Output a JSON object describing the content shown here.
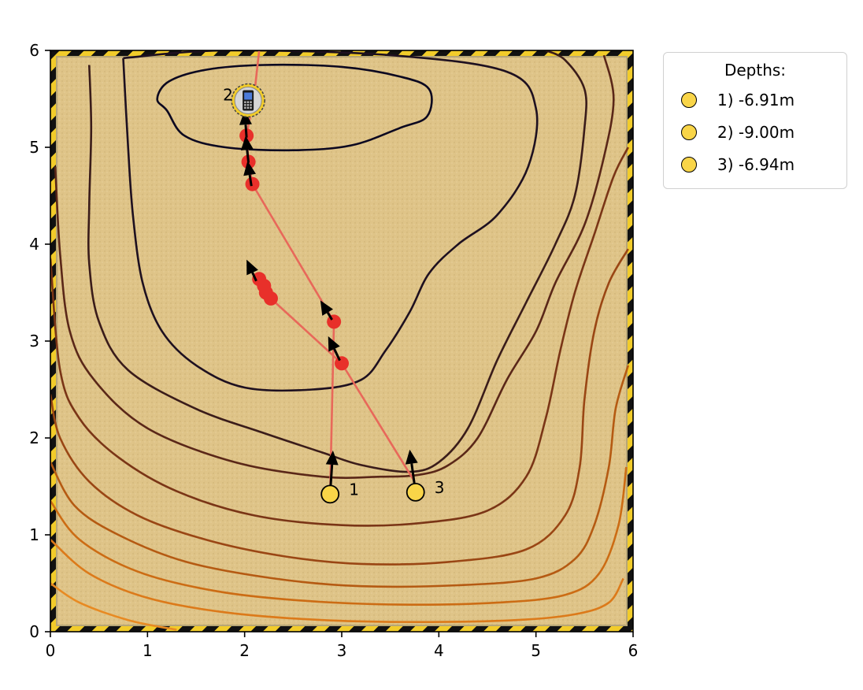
{
  "chart_data": {
    "type": "contour",
    "xlim": [
      0,
      6
    ],
    "ylim": [
      0,
      6
    ],
    "x_ticks": [
      "0",
      "1",
      "2",
      "3",
      "4",
      "5",
      "6"
    ],
    "y_ticks": [
      "0",
      "1",
      "2",
      "3",
      "4",
      "5",
      "6"
    ],
    "grid": false,
    "background": "sand texture with yellow/black hazard-stripe border",
    "contour_levels": [
      {
        "color": "#0c0820",
        "points": [
          [
            1.2,
            5.38
          ],
          [
            1.1,
            5.5
          ],
          [
            1.22,
            5.68
          ],
          [
            1.6,
            5.8
          ],
          [
            2.2,
            5.85
          ],
          [
            3.0,
            5.83
          ],
          [
            3.6,
            5.73
          ],
          [
            3.9,
            5.6
          ],
          [
            3.88,
            5.32
          ],
          [
            3.6,
            5.2
          ],
          [
            3.1,
            5.02
          ],
          [
            2.5,
            4.97
          ],
          [
            1.8,
            5.0
          ],
          [
            1.38,
            5.12
          ],
          [
            1.2,
            5.38
          ]
        ],
        "closed": true
      },
      {
        "color": "#1e1020",
        "points": [
          [
            0.75,
            5.92
          ],
          [
            1.8,
            6.0
          ],
          [
            3.5,
            5.95
          ],
          [
            4.7,
            5.78
          ],
          [
            5.0,
            5.4
          ],
          [
            4.92,
            4.8
          ],
          [
            4.6,
            4.3
          ],
          [
            4.2,
            4.0
          ],
          [
            3.9,
            3.7
          ],
          [
            3.7,
            3.3
          ],
          [
            3.45,
            2.9
          ],
          [
            3.2,
            2.6
          ],
          [
            2.7,
            2.5
          ],
          [
            2.0,
            2.52
          ],
          [
            1.5,
            2.75
          ],
          [
            1.15,
            3.1
          ],
          [
            0.95,
            3.6
          ],
          [
            0.85,
            4.3
          ],
          [
            0.8,
            5.0
          ],
          [
            0.75,
            5.92
          ]
        ]
      },
      {
        "color": "#3a1c1a",
        "points": [
          [
            0.4,
            5.85
          ],
          [
            0.42,
            5.2
          ],
          [
            0.4,
            4.4
          ],
          [
            0.4,
            3.8
          ],
          [
            0.5,
            3.2
          ],
          [
            0.8,
            2.7
          ],
          [
            1.5,
            2.3
          ],
          [
            2.2,
            2.05
          ],
          [
            2.8,
            1.85
          ],
          [
            3.2,
            1.72
          ],
          [
            3.7,
            1.65
          ],
          [
            4.0,
            1.75
          ],
          [
            4.3,
            2.1
          ],
          [
            4.6,
            2.8
          ],
          [
            4.9,
            3.4
          ],
          [
            5.2,
            4.0
          ],
          [
            5.4,
            4.5
          ],
          [
            5.5,
            5.2
          ],
          [
            5.5,
            5.6
          ],
          [
            5.3,
            5.9
          ],
          [
            5.1,
            6.0
          ]
        ]
      },
      {
        "color": "#5a2718",
        "points": [
          [
            0.05,
            4.8
          ],
          [
            0.1,
            3.9
          ],
          [
            0.2,
            3.1
          ],
          [
            0.45,
            2.6
          ],
          [
            1.0,
            2.1
          ],
          [
            1.9,
            1.75
          ],
          [
            2.8,
            1.6
          ],
          [
            3.4,
            1.6
          ],
          [
            3.8,
            1.62
          ],
          [
            4.1,
            1.72
          ],
          [
            4.4,
            2.0
          ],
          [
            4.7,
            2.6
          ],
          [
            5.0,
            3.1
          ],
          [
            5.2,
            3.6
          ],
          [
            5.5,
            4.2
          ],
          [
            5.7,
            4.9
          ],
          [
            5.8,
            5.5
          ],
          [
            5.7,
            5.95
          ]
        ]
      },
      {
        "color": "#7a3516",
        "points": [
          [
            0.0,
            3.85
          ],
          [
            0.1,
            2.7
          ],
          [
            0.3,
            2.2
          ],
          [
            0.7,
            1.8
          ],
          [
            1.3,
            1.45
          ],
          [
            2.1,
            1.2
          ],
          [
            3.0,
            1.1
          ],
          [
            3.8,
            1.12
          ],
          [
            4.5,
            1.25
          ],
          [
            4.9,
            1.6
          ],
          [
            5.1,
            2.2
          ],
          [
            5.25,
            2.9
          ],
          [
            5.4,
            3.5
          ],
          [
            5.6,
            4.1
          ],
          [
            5.8,
            4.7
          ],
          [
            5.95,
            5.0
          ]
        ]
      },
      {
        "color": "#9a4614",
        "points": [
          [
            0.0,
            2.45
          ],
          [
            0.1,
            2.0
          ],
          [
            0.4,
            1.55
          ],
          [
            0.9,
            1.2
          ],
          [
            1.6,
            0.95
          ],
          [
            2.4,
            0.78
          ],
          [
            3.2,
            0.7
          ],
          [
            4.1,
            0.72
          ],
          [
            4.9,
            0.85
          ],
          [
            5.3,
            1.2
          ],
          [
            5.45,
            1.7
          ],
          [
            5.5,
            2.4
          ],
          [
            5.6,
            3.1
          ],
          [
            5.75,
            3.6
          ],
          [
            5.95,
            3.95
          ]
        ]
      },
      {
        "color": "#b55a12",
        "points": [
          [
            0.0,
            1.75
          ],
          [
            0.25,
            1.3
          ],
          [
            0.7,
            1.0
          ],
          [
            1.4,
            0.72
          ],
          [
            2.3,
            0.55
          ],
          [
            3.2,
            0.47
          ],
          [
            4.2,
            0.48
          ],
          [
            5.0,
            0.55
          ],
          [
            5.4,
            0.75
          ],
          [
            5.6,
            1.1
          ],
          [
            5.75,
            1.7
          ],
          [
            5.82,
            2.3
          ],
          [
            5.95,
            2.75
          ]
        ]
      },
      {
        "color": "#cc6c14",
        "points": [
          [
            0.0,
            1.35
          ],
          [
            0.3,
            0.95
          ],
          [
            0.9,
            0.62
          ],
          [
            1.7,
            0.42
          ],
          [
            2.6,
            0.32
          ],
          [
            3.6,
            0.28
          ],
          [
            4.6,
            0.3
          ],
          [
            5.3,
            0.38
          ],
          [
            5.65,
            0.6
          ],
          [
            5.85,
            1.1
          ],
          [
            5.93,
            1.7
          ]
        ]
      },
      {
        "color": "#dc7a1a",
        "points": [
          [
            0.0,
            0.95
          ],
          [
            0.4,
            0.6
          ],
          [
            1.0,
            0.35
          ],
          [
            1.8,
            0.2
          ],
          [
            2.8,
            0.12
          ],
          [
            3.8,
            0.1
          ],
          [
            4.8,
            0.12
          ],
          [
            5.4,
            0.18
          ],
          [
            5.75,
            0.3
          ],
          [
            5.9,
            0.55
          ]
        ]
      },
      {
        "color": "#e88a22",
        "points": [
          [
            0.0,
            0.5
          ],
          [
            0.3,
            0.3
          ],
          [
            0.8,
            0.12
          ],
          [
            1.3,
            0.02
          ]
        ]
      }
    ],
    "trajectory": {
      "color": "#e8685a",
      "segments": [
        [
          [
            2.88,
            1.42
          ],
          [
            2.92,
            3.2
          ],
          [
            2.08,
            4.62
          ],
          [
            2.04,
            4.85
          ],
          [
            2.02,
            5.12
          ],
          [
            2.1,
            5.55
          ],
          [
            2.15,
            6.0
          ]
        ],
        [
          [
            3.75,
            1.55
          ],
          [
            3.0,
            2.77
          ],
          [
            2.27,
            3.44
          ],
          [
            2.22,
            3.5
          ],
          [
            2.2,
            3.57
          ],
          [
            2.15,
            3.64
          ]
        ]
      ]
    },
    "red_points": [
      [
        2.92,
        3.2
      ],
      [
        3.0,
        2.77
      ],
      [
        2.08,
        4.62
      ],
      [
        2.04,
        4.85
      ],
      [
        2.02,
        5.12
      ],
      [
        2.15,
        3.64
      ],
      [
        2.2,
        3.57
      ],
      [
        2.22,
        3.5
      ],
      [
        2.27,
        3.44
      ]
    ],
    "arrows": [
      {
        "x": 2.88,
        "y": 1.42,
        "dx": 0.03,
        "dy": 0.45
      },
      {
        "x": 3.76,
        "y": 1.44,
        "dx": -0.06,
        "dy": 0.44
      },
      {
        "x": 2.98,
        "y": 2.8,
        "dx": -0.12,
        "dy": 0.25
      },
      {
        "x": 2.9,
        "y": 3.22,
        "dx": -0.12,
        "dy": 0.2
      },
      {
        "x": 2.12,
        "y": 3.62,
        "dx": -0.1,
        "dy": 0.22
      },
      {
        "x": 2.07,
        "y": 4.6,
        "dx": -0.04,
        "dy": 0.26
      },
      {
        "x": 2.04,
        "y": 4.84,
        "dx": -0.03,
        "dy": 0.28
      },
      {
        "x": 2.02,
        "y": 5.1,
        "dx": -0.02,
        "dy": 0.28
      }
    ],
    "depth_points": [
      {
        "label": "1",
        "x": 2.88,
        "y": 1.42
      },
      {
        "label": "3",
        "x": 3.76,
        "y": 1.44
      }
    ],
    "target_point": {
      "label": "2",
      "x": 2.02,
      "y": 5.5,
      "icon": "phone-icon"
    },
    "legend": {
      "title": "Depths:",
      "placement": "outside-right-top",
      "entries": [
        "1) -6.91m",
        "2) -9.00m",
        "3) -6.94m"
      ],
      "marker_color": "#f9d548"
    }
  }
}
